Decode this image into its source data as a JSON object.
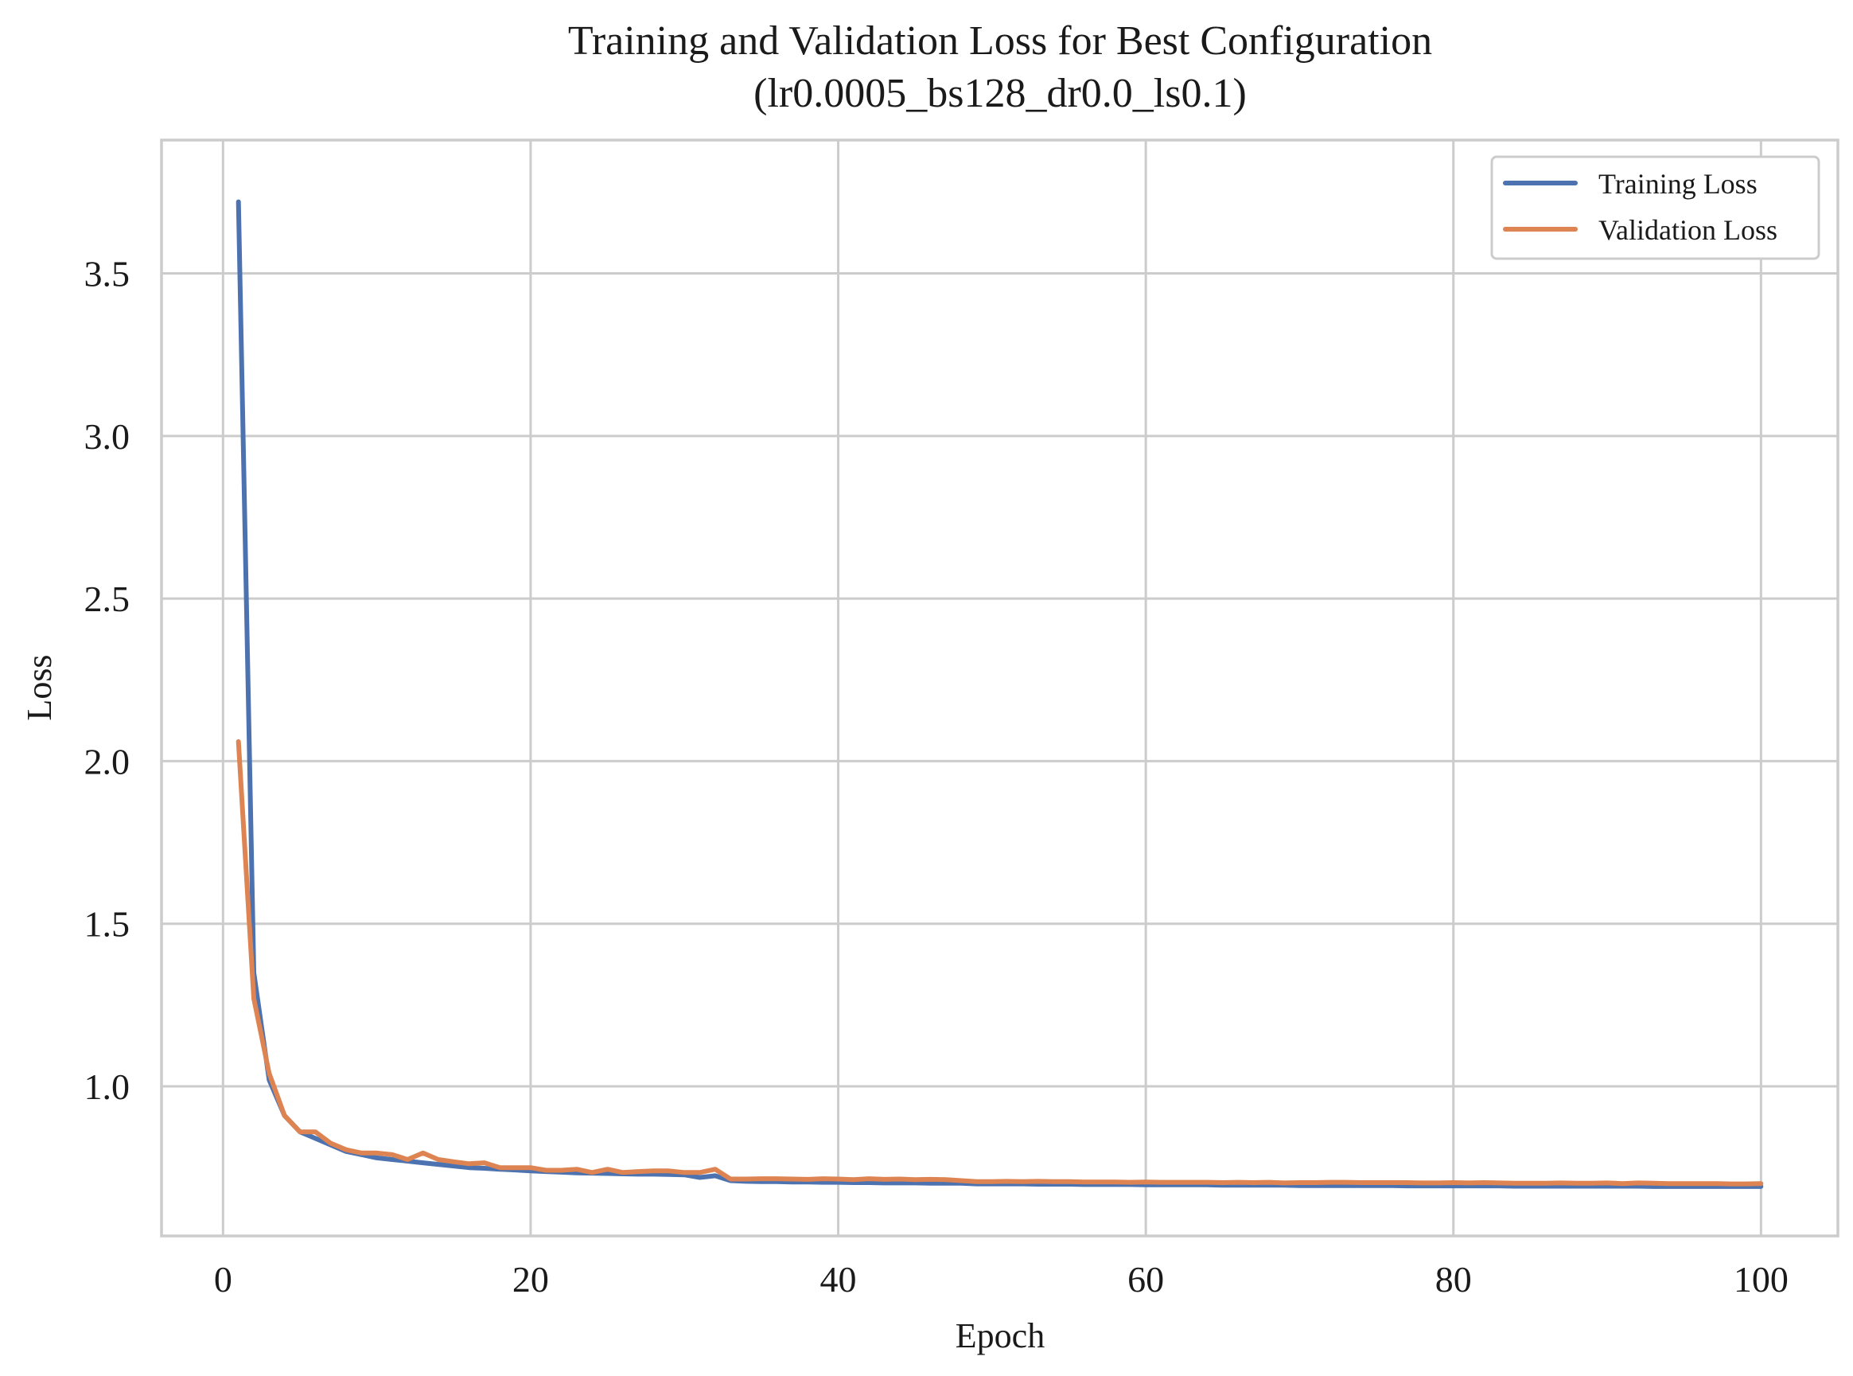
{
  "chart_data": {
    "type": "line",
    "title": [
      "Training and Validation Loss for Best Configuration",
      "(lr0.0005_bs128_dr0.0_ls0.1)"
    ],
    "xlabel": "Epoch",
    "ylabel": "Loss",
    "xlim": [
      -4,
      105
    ],
    "ylim": [
      0.54,
      3.91
    ],
    "xticks": [
      0,
      20,
      40,
      60,
      80,
      100
    ],
    "yticks": [
      1.0,
      1.5,
      2.0,
      2.5,
      3.0,
      3.5
    ],
    "xtick_labels": [
      "0",
      "20",
      "40",
      "60",
      "80",
      "100"
    ],
    "ytick_labels": [
      "1.0",
      "1.5",
      "2.0",
      "2.5",
      "3.0",
      "3.5"
    ],
    "grid": true,
    "legend_position": "top-right",
    "series": [
      {
        "name": "Training Loss",
        "color": "#4c72b0",
        "x": [
          1,
          2,
          3,
          4,
          5,
          6,
          7,
          8,
          9,
          10,
          11,
          12,
          13,
          14,
          15,
          16,
          17,
          18,
          19,
          20,
          21,
          22,
          23,
          24,
          25,
          26,
          27,
          28,
          29,
          30,
          31,
          32,
          33,
          34,
          35,
          36,
          37,
          38,
          39,
          40,
          41,
          42,
          43,
          44,
          45,
          46,
          47,
          48,
          49,
          50,
          51,
          52,
          53,
          54,
          55,
          56,
          57,
          58,
          59,
          60,
          61,
          62,
          63,
          64,
          65,
          66,
          67,
          68,
          69,
          70,
          71,
          72,
          73,
          74,
          75,
          76,
          77,
          78,
          79,
          80,
          81,
          82,
          83,
          84,
          85,
          86,
          87,
          88,
          89,
          90,
          91,
          92,
          93,
          94,
          95,
          96,
          97,
          98,
          99,
          100
        ],
        "y": [
          3.72,
          1.35,
          1.02,
          0.91,
          0.86,
          0.84,
          0.82,
          0.8,
          0.79,
          0.78,
          0.775,
          0.77,
          0.765,
          0.76,
          0.755,
          0.75,
          0.748,
          0.745,
          0.743,
          0.74,
          0.738,
          0.736,
          0.734,
          0.733,
          0.732,
          0.731,
          0.73,
          0.73,
          0.729,
          0.728,
          0.72,
          0.725,
          0.71,
          0.708,
          0.707,
          0.707,
          0.706,
          0.706,
          0.705,
          0.705,
          0.704,
          0.704,
          0.703,
          0.703,
          0.703,
          0.702,
          0.702,
          0.702,
          0.7,
          0.7,
          0.7,
          0.7,
          0.699,
          0.699,
          0.699,
          0.698,
          0.698,
          0.698,
          0.698,
          0.697,
          0.697,
          0.697,
          0.697,
          0.697,
          0.696,
          0.696,
          0.696,
          0.696,
          0.696,
          0.695,
          0.695,
          0.695,
          0.695,
          0.695,
          0.695,
          0.695,
          0.694,
          0.694,
          0.694,
          0.694,
          0.694,
          0.694,
          0.694,
          0.693,
          0.693,
          0.693,
          0.693,
          0.693,
          0.693,
          0.693,
          0.693,
          0.693,
          0.692,
          0.692,
          0.692,
          0.692,
          0.692,
          0.692,
          0.692,
          0.692
        ]
      },
      {
        "name": "Validation Loss",
        "color": "#dd8452",
        "x": [
          1,
          2,
          3,
          4,
          5,
          6,
          7,
          8,
          9,
          10,
          11,
          12,
          13,
          14,
          15,
          16,
          17,
          18,
          19,
          20,
          21,
          22,
          23,
          24,
          25,
          26,
          27,
          28,
          29,
          30,
          31,
          32,
          33,
          34,
          35,
          36,
          37,
          38,
          39,
          40,
          41,
          42,
          43,
          44,
          45,
          46,
          47,
          48,
          49,
          50,
          51,
          52,
          53,
          54,
          55,
          56,
          57,
          58,
          59,
          60,
          61,
          62,
          63,
          64,
          65,
          66,
          67,
          68,
          69,
          70,
          71,
          72,
          73,
          74,
          75,
          76,
          77,
          78,
          79,
          80,
          81,
          82,
          83,
          84,
          85,
          86,
          87,
          88,
          89,
          90,
          91,
          92,
          93,
          94,
          95,
          96,
          97,
          98,
          99,
          100
        ],
        "y": [
          2.06,
          1.27,
          1.04,
          0.91,
          0.86,
          0.86,
          0.825,
          0.805,
          0.795,
          0.795,
          0.79,
          0.775,
          0.795,
          0.775,
          0.768,
          0.762,
          0.765,
          0.75,
          0.75,
          0.75,
          0.742,
          0.742,
          0.745,
          0.735,
          0.745,
          0.735,
          0.738,
          0.74,
          0.74,
          0.735,
          0.735,
          0.745,
          0.715,
          0.715,
          0.716,
          0.716,
          0.715,
          0.714,
          0.716,
          0.715,
          0.713,
          0.716,
          0.714,
          0.715,
          0.713,
          0.714,
          0.713,
          0.71,
          0.707,
          0.707,
          0.708,
          0.707,
          0.708,
          0.707,
          0.707,
          0.706,
          0.706,
          0.706,
          0.705,
          0.706,
          0.705,
          0.705,
          0.705,
          0.705,
          0.704,
          0.705,
          0.704,
          0.705,
          0.703,
          0.704,
          0.704,
          0.705,
          0.705,
          0.704,
          0.704,
          0.704,
          0.704,
          0.703,
          0.703,
          0.704,
          0.703,
          0.704,
          0.703,
          0.702,
          0.702,
          0.702,
          0.703,
          0.702,
          0.702,
          0.703,
          0.701,
          0.703,
          0.702,
          0.701,
          0.701,
          0.701,
          0.701,
          0.7,
          0.7,
          0.701
        ]
      }
    ]
  }
}
